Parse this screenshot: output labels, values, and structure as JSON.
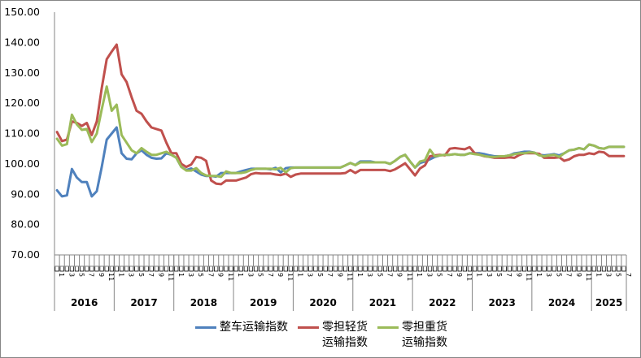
{
  "chart_data": {
    "type": "line",
    "title": "",
    "xlabel": "",
    "ylabel": "",
    "ylim": [
      70,
      150
    ],
    "yticks": [
      "70.00",
      "80.00",
      "90.00",
      "100.00",
      "110.00",
      "120.00",
      "130.00",
      "140.00",
      "150.00"
    ],
    "years": [
      "2016",
      "2017",
      "2018",
      "2019",
      "2020",
      "2021",
      "2022",
      "2023",
      "2024",
      "2025"
    ],
    "months_per_year": [
      12,
      12,
      12,
      12,
      12,
      12,
      12,
      12,
      12,
      7
    ],
    "month_tick_labels": [
      "1",
      "3",
      "5",
      "7",
      "9",
      "11"
    ],
    "grid": false,
    "legend_position": "bottom",
    "series": [
      {
        "name": "整车运输指数",
        "color": "#4F81BD",
        "values": [
          91.3,
          89.3,
          89.6,
          98.3,
          95.5,
          94,
          94,
          89.3,
          91,
          99,
          108,
          110,
          112,
          103.5,
          101.7,
          101.5,
          103.5,
          104.5,
          103,
          102,
          101.7,
          101.8,
          103.5,
          103,
          102,
          99,
          98,
          98.5,
          97.5,
          96.5,
          96,
          96,
          95.8,
          97,
          97,
          97,
          97,
          97.5,
          98,
          98.4,
          98.4,
          98.4,
          98.4,
          98.2,
          98.7,
          97.2,
          98.6,
          98.8,
          98.8,
          98.8,
          98.8,
          98.8,
          98.8,
          98.8,
          98.8,
          98.8,
          98.8,
          98.8,
          99.5,
          100.3,
          99.6,
          100.8,
          100.8,
          100.8,
          100.5,
          100.5,
          100.5,
          100,
          101,
          102.3,
          103,
          100.8,
          98.8,
          100.3,
          100.8,
          101.5,
          102.3,
          102.8,
          103,
          103,
          103.2,
          103,
          103,
          103.5,
          103.5,
          103.5,
          103.2,
          102.8,
          102.5,
          102.5,
          102.5,
          102.8,
          103.5,
          103.7,
          104,
          104,
          103.7,
          103,
          102.8,
          103,
          103.2,
          102.8,
          103.5,
          104.5,
          104.7,
          105.2,
          104.8,
          106.4,
          106,
          105.2,
          105,
          105.6,
          105.6,
          105.6,
          105.6
        ]
      },
      {
        "name": "零担轻货运输指数",
        "color": "#C0504D",
        "values": [
          110.5,
          107.5,
          108,
          114,
          113.5,
          112.5,
          113.5,
          109.5,
          114,
          125,
          134.5,
          137,
          139.3,
          129.5,
          127,
          122,
          117.5,
          116.5,
          114,
          112,
          111.5,
          111,
          107,
          103.5,
          103.5,
          100,
          99,
          99.8,
          102.3,
          102,
          101,
          94.5,
          93.5,
          93.3,
          94.5,
          94.5,
          94.5,
          95,
          95.5,
          96.6,
          97,
          96.8,
          96.8,
          96.8,
          96.5,
          96.3,
          96.8,
          95.7,
          96.5,
          96.8,
          96.8,
          96.8,
          96.8,
          96.8,
          96.8,
          96.8,
          96.8,
          96.8,
          97,
          98,
          97,
          98,
          98,
          98,
          98,
          98,
          98,
          97.6,
          98.2,
          99.2,
          100.2,
          98.2,
          96.2,
          98.5,
          99.5,
          102.5,
          102.8,
          103,
          102.8,
          105,
          105.2,
          105,
          104.8,
          105.5,
          103.5,
          103,
          102.5,
          102.3,
          102,
          102,
          102,
          102.2,
          102,
          103,
          103.5,
          103.5,
          103.5,
          103.3,
          102,
          102,
          102,
          102.2,
          101,
          101.5,
          102.5,
          103,
          103,
          103.5,
          103.2,
          104,
          103.8,
          102.6,
          102.6,
          102.6,
          102.6
        ]
      },
      {
        "name": "零担重货运输指数",
        "color": "#9BBB59",
        "values": [
          108.3,
          106,
          106.5,
          116.2,
          113,
          111.2,
          111.5,
          107.2,
          110,
          118,
          125.5,
          117.5,
          119.5,
          109.5,
          107,
          104.5,
          103.5,
          105.2,
          104,
          103,
          103,
          103.5,
          104,
          103,
          102,
          99,
          97.8,
          97.8,
          98.6,
          97,
          96.2,
          96,
          96,
          95.7,
          97.5,
          97,
          97,
          97,
          97.3,
          98,
          98.4,
          98.4,
          98.4,
          98.4,
          98.2,
          98.7,
          97.2,
          98.6,
          98.8,
          98.8,
          98.8,
          98.8,
          98.8,
          98.8,
          98.8,
          98.8,
          98.8,
          98.8,
          99.5,
          100.3,
          99.6,
          100.5,
          100.5,
          100.5,
          100.5,
          100.5,
          100.5,
          100,
          101,
          102.3,
          103,
          100.8,
          98.8,
          100.8,
          101.2,
          104.7,
          102.5,
          102.8,
          103,
          103,
          103.2,
          103,
          103,
          103.5,
          103.2,
          103,
          102.6,
          102.3,
          102.3,
          102.5,
          102.5,
          102.8,
          103.2,
          103.5,
          103.5,
          103.8,
          103.7,
          102.8,
          102.5,
          102.8,
          103,
          102.3,
          103.5,
          104.5,
          104.7,
          105.2,
          104.8,
          106.4,
          106,
          105.2,
          105,
          105.6,
          105.6,
          105.6,
          105.6
        ]
      }
    ]
  },
  "legend": [
    {
      "label": "整车运输指数",
      "color": "#4F81BD"
    },
    {
      "label": "零担轻货\n运输指数",
      "color": "#C0504D"
    },
    {
      "label": "零担重货\n运输指数",
      "color": "#9BBB59"
    }
  ],
  "month_char": "月"
}
